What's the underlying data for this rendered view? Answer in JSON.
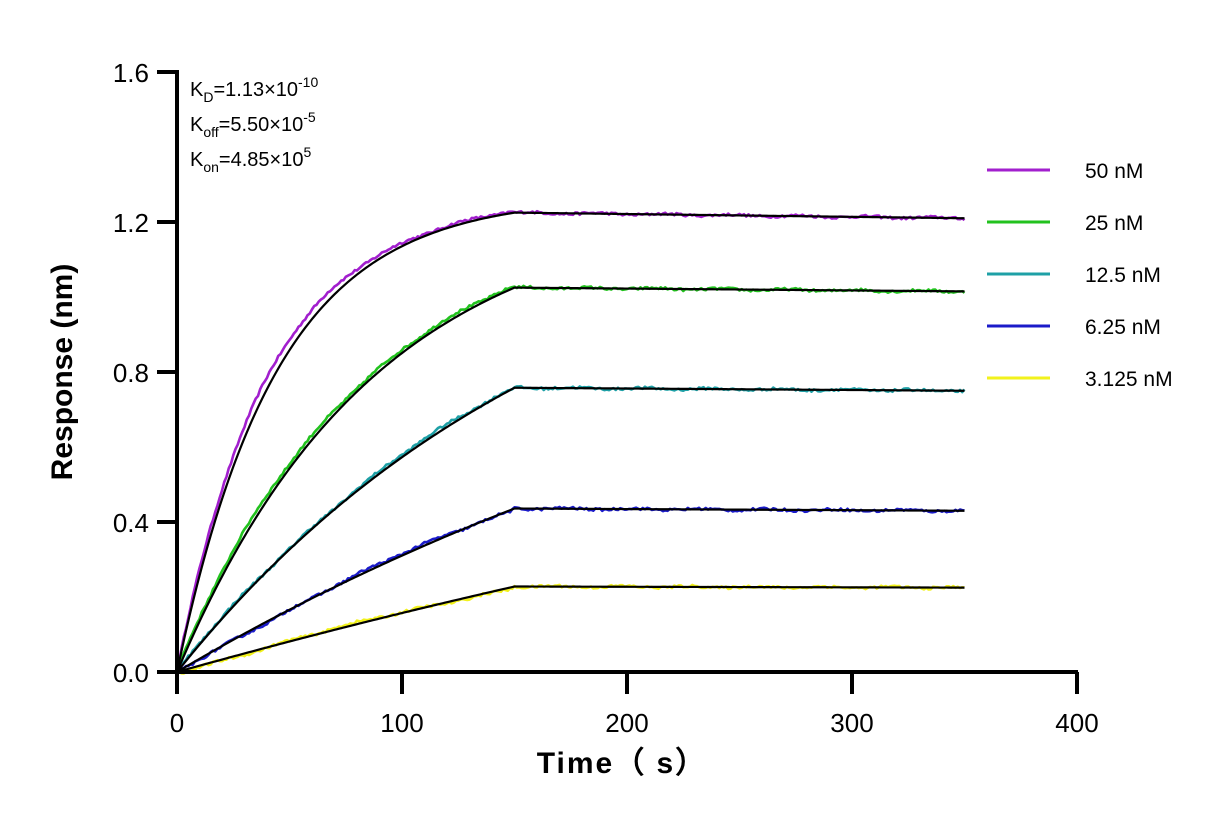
{
  "chart_data": {
    "type": "line",
    "xlabel": "Time（ s）",
    "ylabel": "Response (nm)",
    "xlim": [
      0,
      400
    ],
    "ylim": [
      0,
      1.6
    ],
    "x_ticks": [
      "0",
      "100",
      "200",
      "300",
      "400"
    ],
    "y_ticks": [
      "0.0",
      "0.4",
      "0.8",
      "1.2",
      "1.6"
    ],
    "grid": false,
    "legend_position": "right",
    "association_end_s": 150,
    "end_s": 350,
    "annotations": [
      {
        "main": "K",
        "sub": "D",
        "rest": "=1.13×10",
        "sup": "-10"
      },
      {
        "main": "K",
        "sub": "off",
        "rest": "=5.50×10",
        "sup": "-5"
      },
      {
        "main": "K",
        "sub": "on",
        "rest": "=4.85×10",
        "sup": "5"
      }
    ],
    "fit_color": "#000000",
    "series": [
      {
        "name": "50 nM",
        "color": "#a21fce",
        "plateau": 1.225,
        "end": 1.21,
        "kobs": 0.0243
      },
      {
        "name": "25 nM",
        "color": "#22c21e",
        "plateau": 1.025,
        "end": 1.015,
        "kobs": 0.0122
      },
      {
        "name": "12.5 nM",
        "color": "#1ea0a6",
        "plateau": 0.758,
        "end": 0.75,
        "kobs": 0.0061
      },
      {
        "name": "6.25 nM",
        "color": "#1b1bc9",
        "plateau": 0.436,
        "end": 0.43,
        "kobs": 0.003
      },
      {
        "name": "3.125 nM",
        "color": "#f2f21c",
        "plateau": 0.228,
        "end": 0.225,
        "kobs": 0.0015
      }
    ]
  }
}
